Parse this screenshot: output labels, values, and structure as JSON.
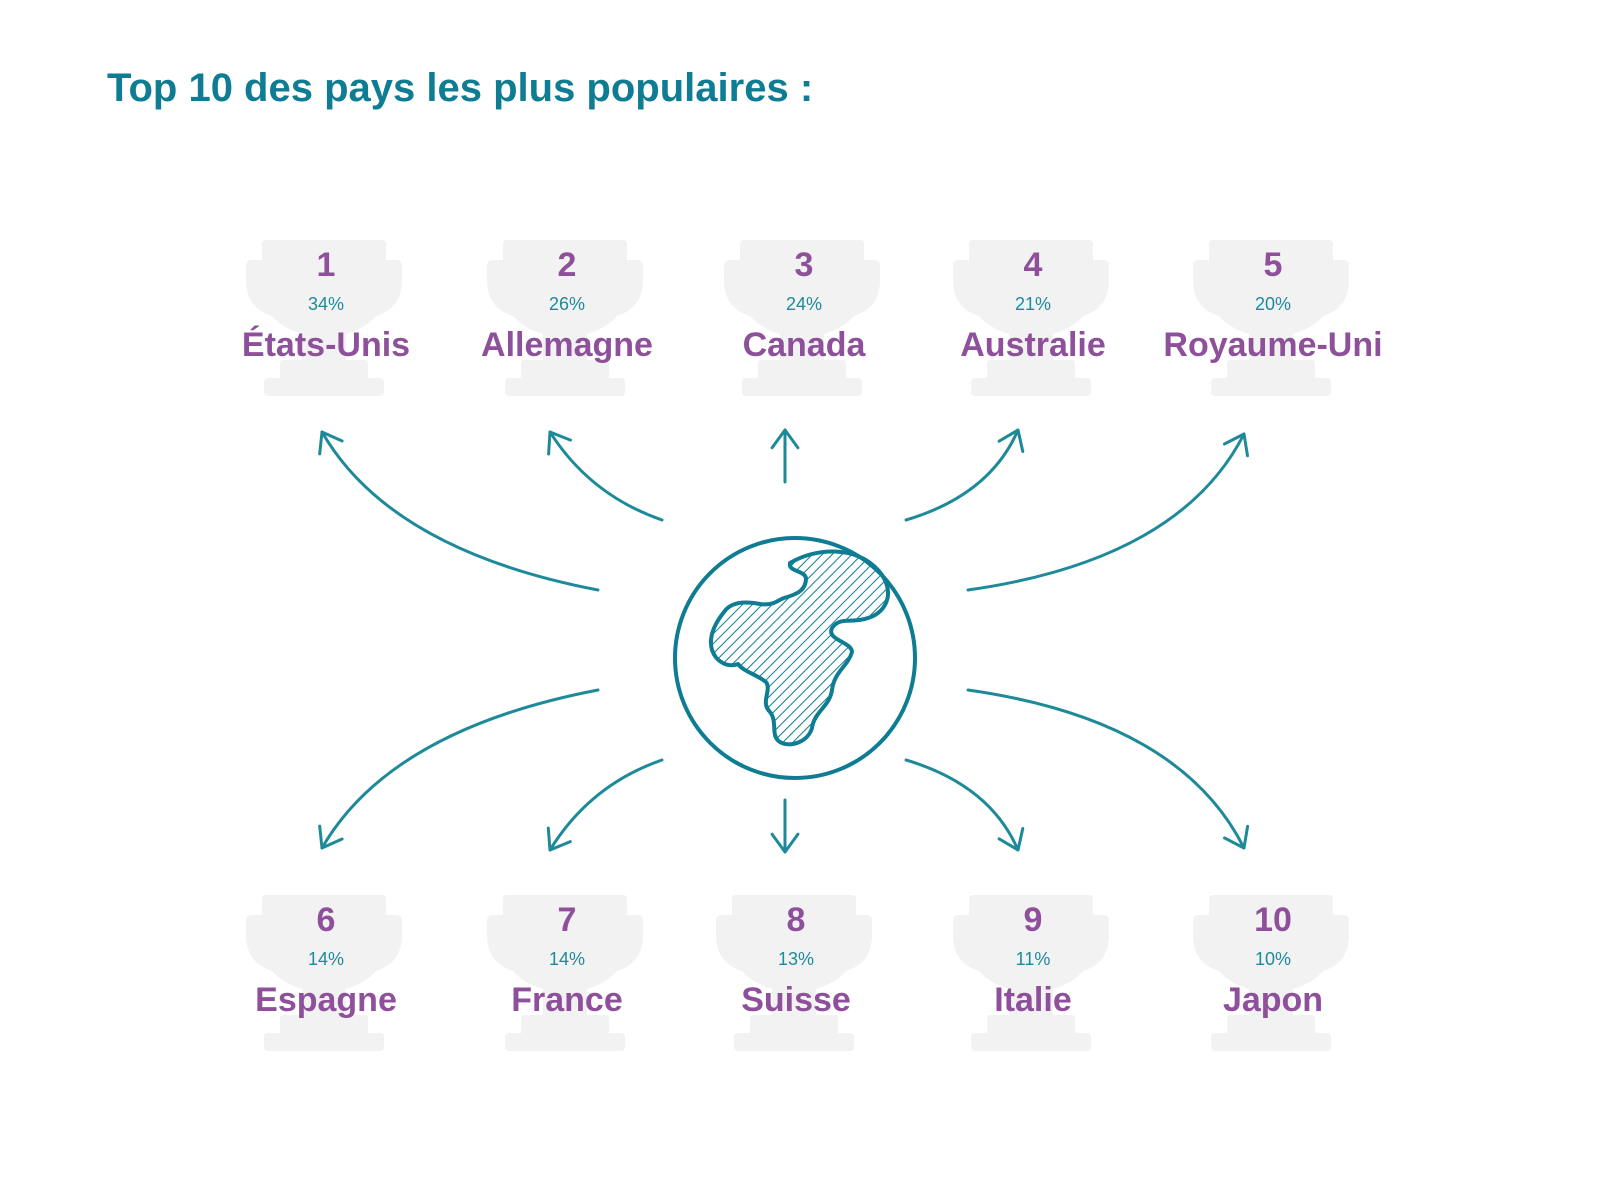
{
  "title": "Top 10 des pays les plus populaires :",
  "colors": {
    "title": "#0e7d93",
    "label": "#8e4f9b",
    "accent": "#1e8a99",
    "trophy": "#f2f2f2",
    "globe": "#0e7d93"
  },
  "icons": {
    "center": "globe-icon",
    "card": "trophy-icon",
    "connector": "arrow-icon"
  },
  "countries": [
    {
      "rank": "1",
      "percent": "34%",
      "name": "États-Unis"
    },
    {
      "rank": "2",
      "percent": "26%",
      "name": "Allemagne"
    },
    {
      "rank": "3",
      "percent": "24%",
      "name": "Canada"
    },
    {
      "rank": "4",
      "percent": "21%",
      "name": "Australie"
    },
    {
      "rank": "5",
      "percent": "20%",
      "name": "Royaume-Uni"
    },
    {
      "rank": "6",
      "percent": "14%",
      "name": "Espagne"
    },
    {
      "rank": "7",
      "percent": "14%",
      "name": "France"
    },
    {
      "rank": "8",
      "percent": "13%",
      "name": "Suisse"
    },
    {
      "rank": "9",
      "percent": "11%",
      "name": "Italie"
    },
    {
      "rank": "10",
      "percent": "10%",
      "name": "Japon"
    }
  ]
}
